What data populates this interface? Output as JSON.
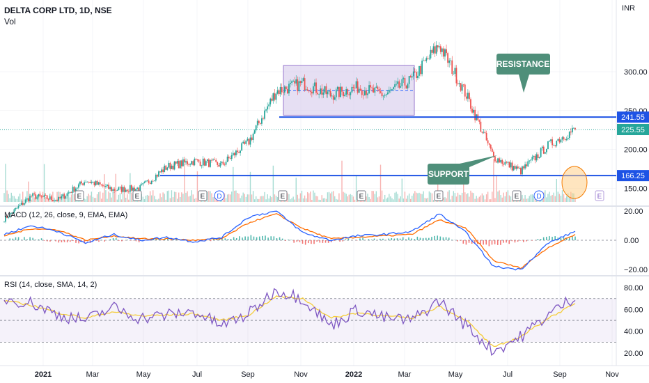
{
  "header": {
    "symbol_title": "DELTA CORP LTD, 1D, NSE",
    "vol_label": "Vol",
    "currency": "INR"
  },
  "macd": {
    "label": "MACD (12, 26, close, 9, EMA, EMA)"
  },
  "rsi": {
    "label": "RSI (14, close, SMA, 14, 2)"
  },
  "annotations": {
    "resistance": "RESISTANCE",
    "support": "SUPPORT"
  },
  "colors": {
    "up": "#26a69a",
    "down": "#ef5350",
    "line": "#1e53e5",
    "grid": "#e0e3eb",
    "callout": "#4f8f7a",
    "macd": "#2962ff",
    "signal": "#ff6d00",
    "rsi": "#7e57c2",
    "rsi_ma": "#f5cd3b",
    "box": "#d1c4e9"
  },
  "chart_data": [
    {
      "type": "candlestick",
      "title": "DELTA CORP LTD, 1D, NSE",
      "ylabel": "INR",
      "y_ticks": [
        150,
        200,
        250,
        300
      ],
      "ylim": [
        95,
        340
      ],
      "x_ticks": [
        "2021",
        "Mar",
        "May",
        "Jul",
        "Sep",
        "Nov",
        "2022",
        "Mar",
        "May",
        "Jul",
        "Sep",
        "Nov"
      ],
      "price_path": [
        {
          "x": "2020-12",
          "close": 110
        },
        {
          "x": "2021-01",
          "close": 140
        },
        {
          "x": "2021-02",
          "close": 135
        },
        {
          "x": "2021-03",
          "close": 160
        },
        {
          "x": "2021-04",
          "close": 148
        },
        {
          "x": "2021-05",
          "close": 150
        },
        {
          "x": "2021-06",
          "close": 178
        },
        {
          "x": "2021-07",
          "close": 185
        },
        {
          "x": "2021-08",
          "close": 180
        },
        {
          "x": "2021-09",
          "close": 210
        },
        {
          "x": "2021-10",
          "close": 275
        },
        {
          "x": "2021-11",
          "close": 285
        },
        {
          "x": "2021-12",
          "close": 270
        },
        {
          "x": "2022-01",
          "close": 280
        },
        {
          "x": "2022-02",
          "close": 270
        },
        {
          "x": "2022-03",
          "close": 290
        },
        {
          "x": "2022-04",
          "close": 335
        },
        {
          "x": "2022-05",
          "close": 270
        },
        {
          "x": "2022-06",
          "close": 190
        },
        {
          "x": "2022-07",
          "close": 172
        },
        {
          "x": "2022-08",
          "close": 205
        },
        {
          "x": "2022-09",
          "close": 225.55
        }
      ],
      "levels": [
        {
          "label": "241.55",
          "value": 241.55,
          "style": "resistance"
        },
        {
          "label": "225.55",
          "value": 225.55,
          "style": "last-price"
        },
        {
          "label": "166.25",
          "value": 166.25,
          "style": "support"
        }
      ],
      "annotations": [
        "RESISTANCE",
        "SUPPORT"
      ],
      "event_markers": [
        {
          "symbol": "E",
          "x": "2021-01"
        },
        {
          "symbol": "E",
          "x": "2021-04"
        },
        {
          "symbol": "E",
          "x": "2021-07"
        },
        {
          "symbol": "D",
          "x": "2021-07"
        },
        {
          "symbol": "E",
          "x": "2021-10"
        },
        {
          "symbol": "E",
          "x": "2022-01"
        },
        {
          "symbol": "E",
          "x": "2022-04"
        },
        {
          "symbol": "E",
          "x": "2022-07"
        },
        {
          "symbol": "D",
          "x": "2022-08"
        },
        {
          "symbol": "E",
          "x": "2022-10"
        }
      ]
    },
    {
      "type": "line",
      "title": "MACD (12, 26, close, 9, EMA, EMA)",
      "y_ticks": [
        "20.00",
        "0.00",
        "−20.00"
      ],
      "ylim": [
        -24,
        24
      ],
      "series": [
        {
          "values": [
            4,
            10,
            6,
            -2,
            4,
            0,
            2,
            -1,
            2,
            16,
            20,
            5,
            0,
            3,
            4,
            6,
            18,
            5,
            -18,
            -20,
            -2,
            6
          ]
        },
        {
          "values": [
            3,
            8,
            7,
            0,
            3,
            1,
            1,
            0,
            1,
            12,
            18,
            8,
            1,
            2,
            3,
            4,
            14,
            8,
            -14,
            -19,
            -5,
            4
          ]
        }
      ]
    },
    {
      "type": "line",
      "title": "RSI (14, close, SMA, 14, 2)",
      "y_ticks": [
        "80.00",
        "60.00",
        "40.00",
        "20.00"
      ],
      "ylim": [
        12,
        88
      ],
      "bands": [
        70,
        50,
        30
      ],
      "series": [
        {
          "values": [
            70,
            66,
            55,
            50,
            62,
            52,
            55,
            58,
            45,
            56,
            78,
            70,
            45,
            60,
            52,
            50,
            68,
            45,
            22,
            35,
            55,
            72
          ]
        },
        {
          "values": [
            68,
            64,
            57,
            52,
            58,
            54,
            55,
            56,
            50,
            55,
            72,
            70,
            52,
            57,
            54,
            52,
            63,
            50,
            25,
            35,
            52,
            65
          ]
        }
      ]
    }
  ]
}
